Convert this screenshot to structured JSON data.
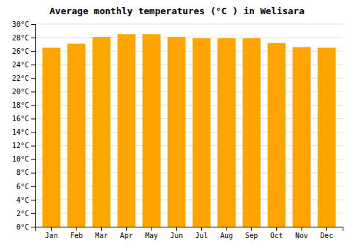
{
  "chart_data": {
    "type": "bar",
    "title": "Average monthly temperatures (°C ) in Welisara",
    "categories": [
      "Jan",
      "Feb",
      "Mar",
      "Apr",
      "May",
      "Jun",
      "Jul",
      "Aug",
      "Sep",
      "Oct",
      "Nov",
      "Dec"
    ],
    "values": [
      26.5,
      27.1,
      28.1,
      28.5,
      28.5,
      28.1,
      27.9,
      27.9,
      27.9,
      27.2,
      26.6,
      26.5
    ],
    "color": "#FFA500",
    "ylim": [
      0,
      30
    ],
    "yticks": [
      {
        "value": 0,
        "label": "0°C"
      },
      {
        "value": 2,
        "label": "2°C"
      },
      {
        "value": 4,
        "label": "4°C"
      },
      {
        "value": 6,
        "label": "6°C"
      },
      {
        "value": 8,
        "label": "8°C"
      },
      {
        "value": 10,
        "label": "10°C"
      },
      {
        "value": 12,
        "label": "12°C"
      },
      {
        "value": 14,
        "label": "14°C"
      },
      {
        "value": 16,
        "label": "16°C"
      },
      {
        "value": 18,
        "label": "18°C"
      },
      {
        "value": 20,
        "label": "20°C"
      },
      {
        "value": 22,
        "label": "22°C"
      },
      {
        "value": 24,
        "label": "24°C"
      },
      {
        "value": 26,
        "label": "26°C"
      },
      {
        "value": 28,
        "label": "28°C"
      },
      {
        "value": 30,
        "label": "30°C"
      }
    ],
    "grid": true
  }
}
